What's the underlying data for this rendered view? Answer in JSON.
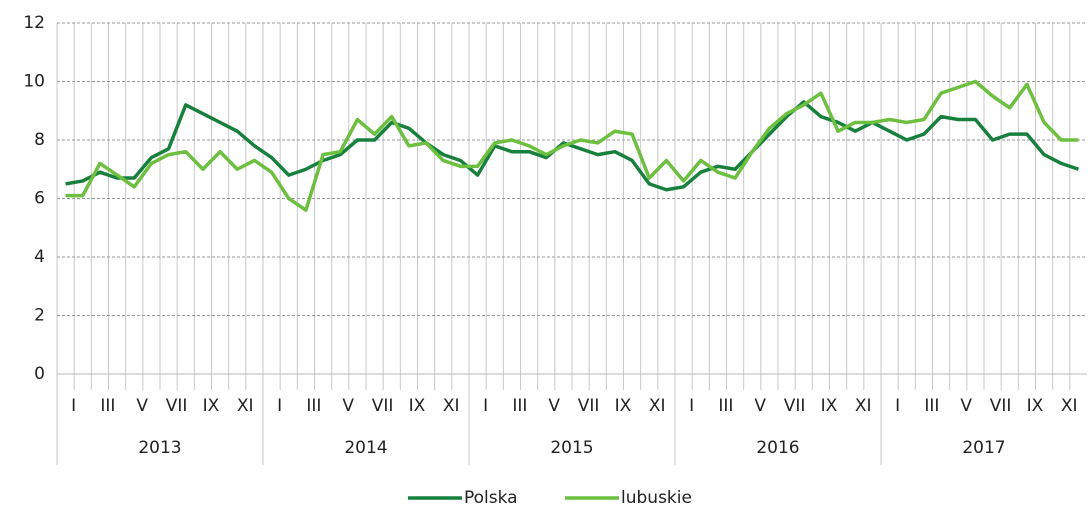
{
  "chart_data": {
    "type": "line",
    "categories": [
      "I",
      null,
      "III",
      null,
      "V",
      null,
      "VII",
      null,
      "IX",
      null,
      "XI",
      null,
      "I",
      null,
      "III",
      null,
      "V",
      null,
      "VII",
      null,
      "IX",
      null,
      "XI",
      null,
      "I",
      null,
      "III",
      null,
      "V",
      null,
      "VII",
      null,
      "IX",
      null,
      "XI",
      null,
      "I",
      null,
      "III",
      null,
      "V",
      null,
      "VII",
      null,
      "IX",
      null,
      "XI",
      null,
      "I",
      null,
      "III",
      null,
      "V",
      null,
      "VII",
      null,
      "IX",
      null,
      "XI",
      null
    ],
    "groups": [
      "2013",
      "2014",
      "2015",
      "2016",
      "2017"
    ],
    "series": [
      {
        "name": "Polska",
        "color": "#17803d",
        "values": [
          6.5,
          6.6,
          6.9,
          6.7,
          6.7,
          7.4,
          7.7,
          9.2,
          8.9,
          8.6,
          8.3,
          7.8,
          7.4,
          6.8,
          7.0,
          7.3,
          7.5,
          8.0,
          8.0,
          8.6,
          8.4,
          7.9,
          7.5,
          7.3,
          6.8,
          7.8,
          7.6,
          7.6,
          7.4,
          7.9,
          7.7,
          7.5,
          7.6,
          7.3,
          6.5,
          6.3,
          6.4,
          6.9,
          7.1,
          7.0,
          7.6,
          8.2,
          8.8,
          9.3,
          8.8,
          8.6,
          8.3,
          8.6,
          8.3,
          8.0,
          8.2,
          8.8,
          8.7,
          8.7,
          8.0,
          8.2,
          8.2,
          7.5,
          7.2,
          7.0
        ]
      },
      {
        "name": "lubuskie",
        "color": "#6cbf3f",
        "values": [
          6.1,
          6.1,
          7.2,
          6.8,
          6.4,
          7.2,
          7.5,
          7.6,
          7.0,
          7.6,
          7.0,
          7.3,
          6.9,
          6.0,
          5.6,
          7.5,
          7.6,
          8.7,
          8.2,
          8.8,
          7.8,
          7.9,
          7.3,
          7.1,
          7.1,
          7.9,
          8.0,
          7.8,
          7.5,
          7.8,
          8.0,
          7.9,
          8.3,
          8.2,
          6.7,
          7.3,
          6.6,
          7.3,
          6.9,
          6.7,
          7.6,
          8.4,
          8.9,
          9.2,
          9.6,
          8.3,
          8.6,
          8.6,
          8.7,
          8.6,
          8.7,
          9.6,
          9.8,
          10.0,
          9.5,
          9.1,
          9.9,
          8.6,
          8.0,
          8.0
        ]
      }
    ],
    "ylim": [
      0,
      12
    ],
    "yticks": [
      0,
      2,
      4,
      6,
      8,
      10,
      12
    ],
    "grid": true,
    "legend": "bottom"
  }
}
